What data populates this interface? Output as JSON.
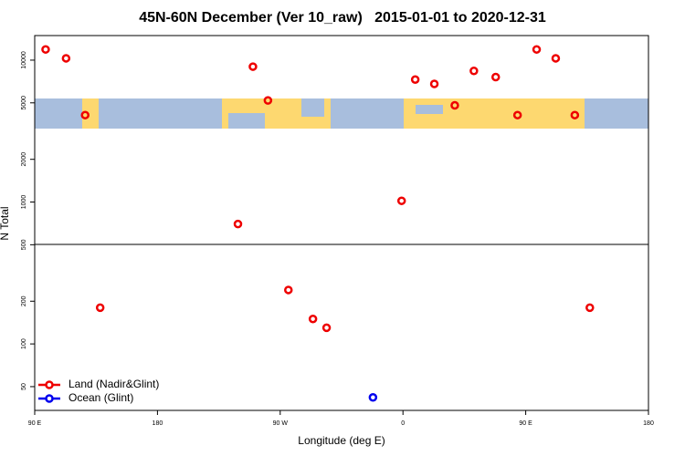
{
  "chart_data": {
    "type": "scatter",
    "title": "45N-60N December (Ver 10_raw)   2015-01-01 to 2020-12-31",
    "xlabel": "Longitude (deg E)",
    "ylabel": "N Total",
    "xlim": [
      90,
      540
    ],
    "xticks": [
      {
        "value": 90,
        "label": "90 E"
      },
      {
        "value": 180,
        "label": "180"
      },
      {
        "value": 270,
        "label": "90 W"
      },
      {
        "value": 360,
        "label": "0"
      },
      {
        "value": 450,
        "label": "90 E"
      },
      {
        "value": 540,
        "label": "180"
      }
    ],
    "ylim": [
      34,
      14900
    ],
    "yticks": [
      50,
      100,
      200,
      500,
      1000,
      2000,
      5000,
      10000
    ],
    "ylog": true,
    "legend": "lower left",
    "series": [
      {
        "name": "Land (Nadir&Glint)",
        "color": "#ee0000",
        "x": [
          98,
          113,
          127,
          138,
          239,
          250,
          261,
          276,
          294,
          304,
          359,
          369,
          383,
          398,
          412,
          428,
          444,
          458,
          472,
          486,
          497
        ],
        "values": [
          11900,
          10300,
          4100,
          180,
          700,
          9000,
          5200,
          240,
          150,
          130,
          1020,
          7300,
          6800,
          4800,
          8400,
          7600,
          4100,
          11900,
          10300,
          4100,
          180
        ]
      },
      {
        "name": "Ocean (Glint)",
        "color": "#0000ee",
        "x": [
          338
        ],
        "values": [
          42
        ]
      }
    ]
  }
}
